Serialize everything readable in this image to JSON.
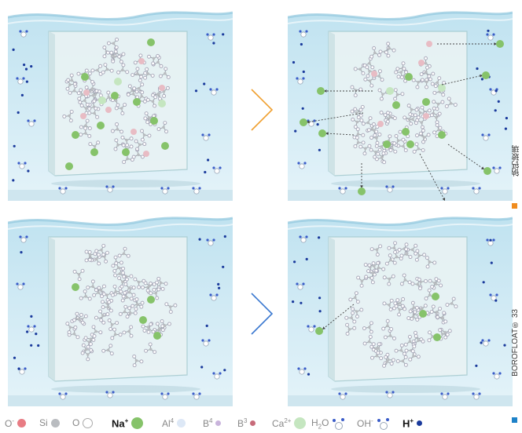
{
  "side_labels": {
    "top": {
      "text": "钠钙玻璃",
      "color": "#f08c1e"
    },
    "bottom": {
      "text": "BOROFLOAT® 33",
      "color": "#1e82c8"
    }
  },
  "legend": [
    {
      "label": "O",
      "sup": "-",
      "color": "#e87c84",
      "style": "fill",
      "icon": "oxygen-ion-icon"
    },
    {
      "label": "Si",
      "sup": "",
      "color": "#b9bcc0",
      "style": "fill",
      "icon": "silicon-icon"
    },
    {
      "label": "O",
      "sup": "",
      "color": "#ffffff",
      "style": "outline",
      "icon": "oxygen-icon"
    },
    {
      "label": "Na",
      "sup": "+",
      "color": "#86c36a",
      "style": "fill-big",
      "icon": "sodium-ion-icon",
      "bold": true
    },
    {
      "label": "Al",
      "sup": "4",
      "color": "#dde8f6",
      "style": "fill",
      "icon": "aluminium-icon"
    },
    {
      "label": "B",
      "sup": "4",
      "color": "#c9b4dc",
      "style": "fill-small",
      "icon": "boron4-icon"
    },
    {
      "label": "B",
      "sup": "3",
      "color": "#c76b7a",
      "style": "fill-small",
      "icon": "boron3-icon"
    },
    {
      "label": "Ca",
      "sup": "2+",
      "color": "#c5e6c0",
      "style": "fill-big",
      "icon": "calcium-ion-icon"
    },
    {
      "label": "H",
      "sub": "2",
      "label2": "O",
      "color": "#3a5cc8",
      "style": "water",
      "icon": "water-molecule-icon"
    },
    {
      "label": "OH",
      "sup": "-",
      "color": "#3a5cc8",
      "style": "water",
      "icon": "hydroxide-icon"
    },
    {
      "label": "H",
      "sup": "+",
      "color": "#1a3a9c",
      "style": "fill-small",
      "icon": "hydrogen-ion-icon",
      "bold": true
    }
  ],
  "colors": {
    "water": "#d6ecf5",
    "water_dark": "#8ec6dd",
    "glass": "#e9f3f4",
    "glass_edge": "#a9cdd2",
    "arrow_top": "#f0a030",
    "arrow_bottom": "#3a78d0",
    "network": "#9aa3a8"
  }
}
